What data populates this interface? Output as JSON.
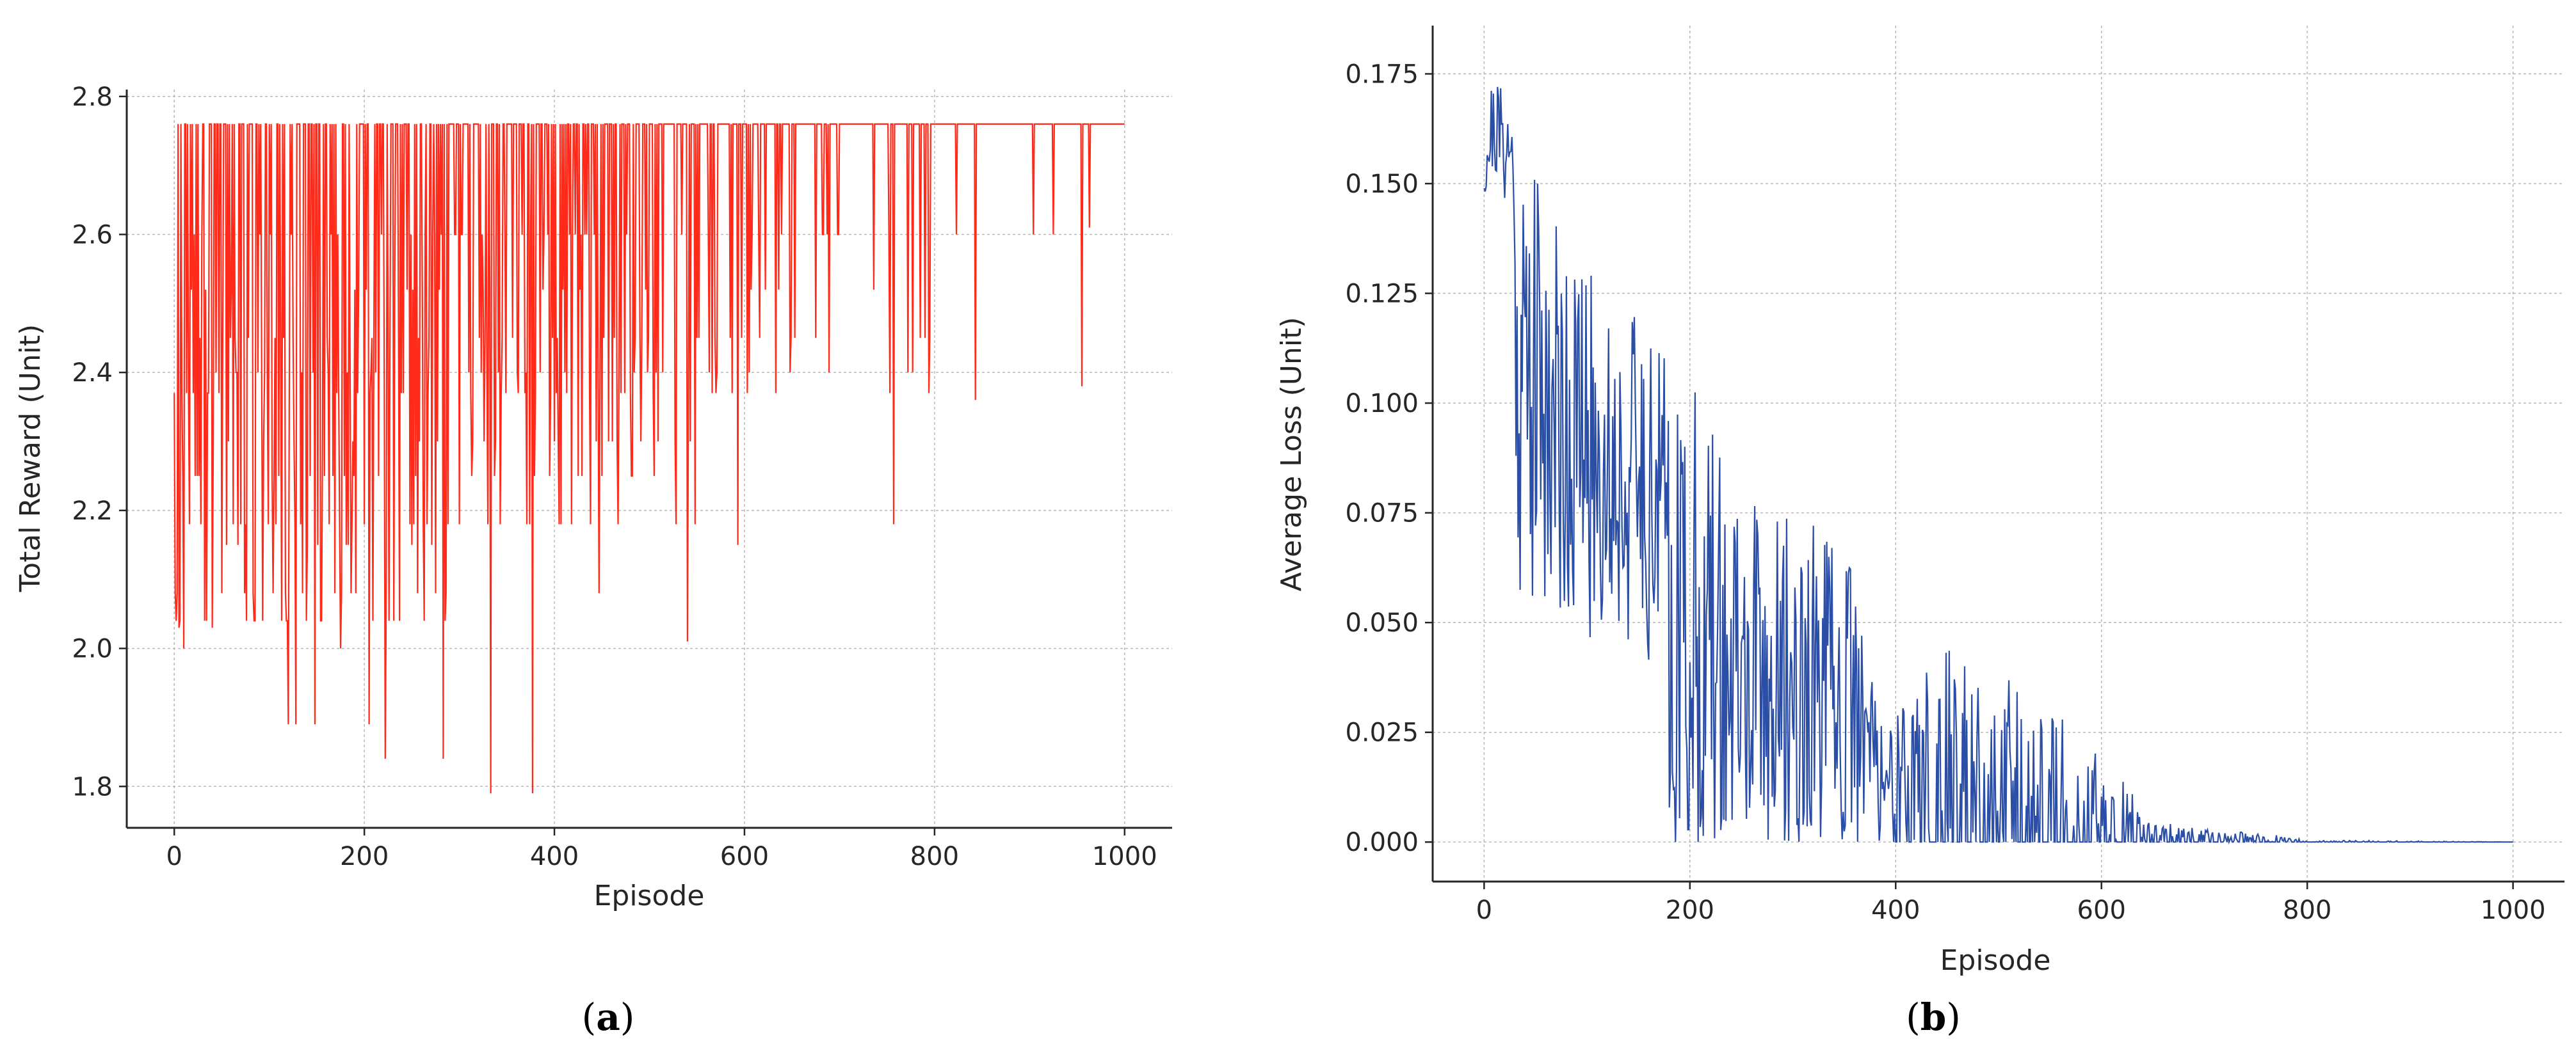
{
  "chart_data": [
    {
      "type": "line",
      "panel_label": "a",
      "xlabel": "Episode",
      "ylabel": "Total Reward (Unit)",
      "xlim": [
        -50,
        1050
      ],
      "ylim": [
        1.74,
        2.81
      ],
      "x_ticks": [
        0,
        200,
        400,
        600,
        800,
        1000
      ],
      "y_ticks": [
        1.8,
        2.0,
        2.2,
        2.4,
        2.6,
        2.8
      ],
      "x_tick_labels": [
        "0",
        "200",
        "400",
        "600",
        "800",
        "1000"
      ],
      "y_tick_labels": [
        "1.8",
        "2.0",
        "2.2",
        "2.4",
        "2.6",
        "2.8"
      ],
      "grid": true,
      "color": "#ff2a1a",
      "n_points": 1001,
      "max_value": 2.76,
      "notable_values": [
        {
          "x": 0,
          "y": 2.37
        },
        {
          "x": 5,
          "y": 2.03
        },
        {
          "x": 10,
          "y": 2.0
        },
        {
          "x": 40,
          "y": 2.03
        },
        {
          "x": 120,
          "y": 1.89
        },
        {
          "x": 128,
          "y": 1.89
        },
        {
          "x": 148,
          "y": 1.89
        },
        {
          "x": 175,
          "y": 2.0
        },
        {
          "x": 205,
          "y": 1.89
        },
        {
          "x": 222,
          "y": 1.84
        },
        {
          "x": 283,
          "y": 1.84
        },
        {
          "x": 333,
          "y": 1.79
        },
        {
          "x": 377,
          "y": 1.79
        },
        {
          "x": 447,
          "y": 2.08
        },
        {
          "x": 540,
          "y": 2.01
        },
        {
          "x": 593,
          "y": 2.15
        },
        {
          "x": 757,
          "y": 2.18
        },
        {
          "x": 843,
          "y": 2.36
        },
        {
          "x": 955,
          "y": 2.38
        },
        {
          "x": 963,
          "y": 2.61
        }
      ]
    },
    {
      "type": "line",
      "panel_label": "b",
      "xlabel": "Episode",
      "ylabel": "Average Loss (Unit)",
      "xlim": [
        -50,
        1050
      ],
      "ylim": [
        -0.009,
        0.186
      ],
      "x_ticks": [
        0,
        200,
        400,
        600,
        800,
        1000
      ],
      "y_ticks": [
        0.0,
        0.025,
        0.05,
        0.075,
        0.1,
        0.125,
        0.15,
        0.175
      ],
      "x_tick_labels": [
        "0",
        "200",
        "400",
        "600",
        "800",
        "1000"
      ],
      "y_tick_labels": [
        "0.000",
        "0.025",
        "0.050",
        "0.075",
        "0.100",
        "0.125",
        "0.150",
        "0.175"
      ],
      "grid": true,
      "color": "#2b4ea6",
      "n_points": 1001,
      "envelope": [
        {
          "x": 0,
          "y": 0.168
        },
        {
          "x": 10,
          "y": 0.177
        },
        {
          "x": 50,
          "y": 0.155
        },
        {
          "x": 100,
          "y": 0.13
        },
        {
          "x": 150,
          "y": 0.122
        },
        {
          "x": 200,
          "y": 0.105
        },
        {
          "x": 250,
          "y": 0.08
        },
        {
          "x": 300,
          "y": 0.075
        },
        {
          "x": 350,
          "y": 0.068
        },
        {
          "x": 400,
          "y": 0.028
        },
        {
          "x": 450,
          "y": 0.05
        },
        {
          "x": 500,
          "y": 0.04
        },
        {
          "x": 550,
          "y": 0.03
        },
        {
          "x": 590,
          "y": 0.024
        },
        {
          "x": 650,
          "y": 0.005
        },
        {
          "x": 700,
          "y": 0.003
        },
        {
          "x": 760,
          "y": 0.002
        },
        {
          "x": 800,
          "y": 0.0005
        },
        {
          "x": 1000,
          "y": 0.0
        }
      ]
    }
  ]
}
